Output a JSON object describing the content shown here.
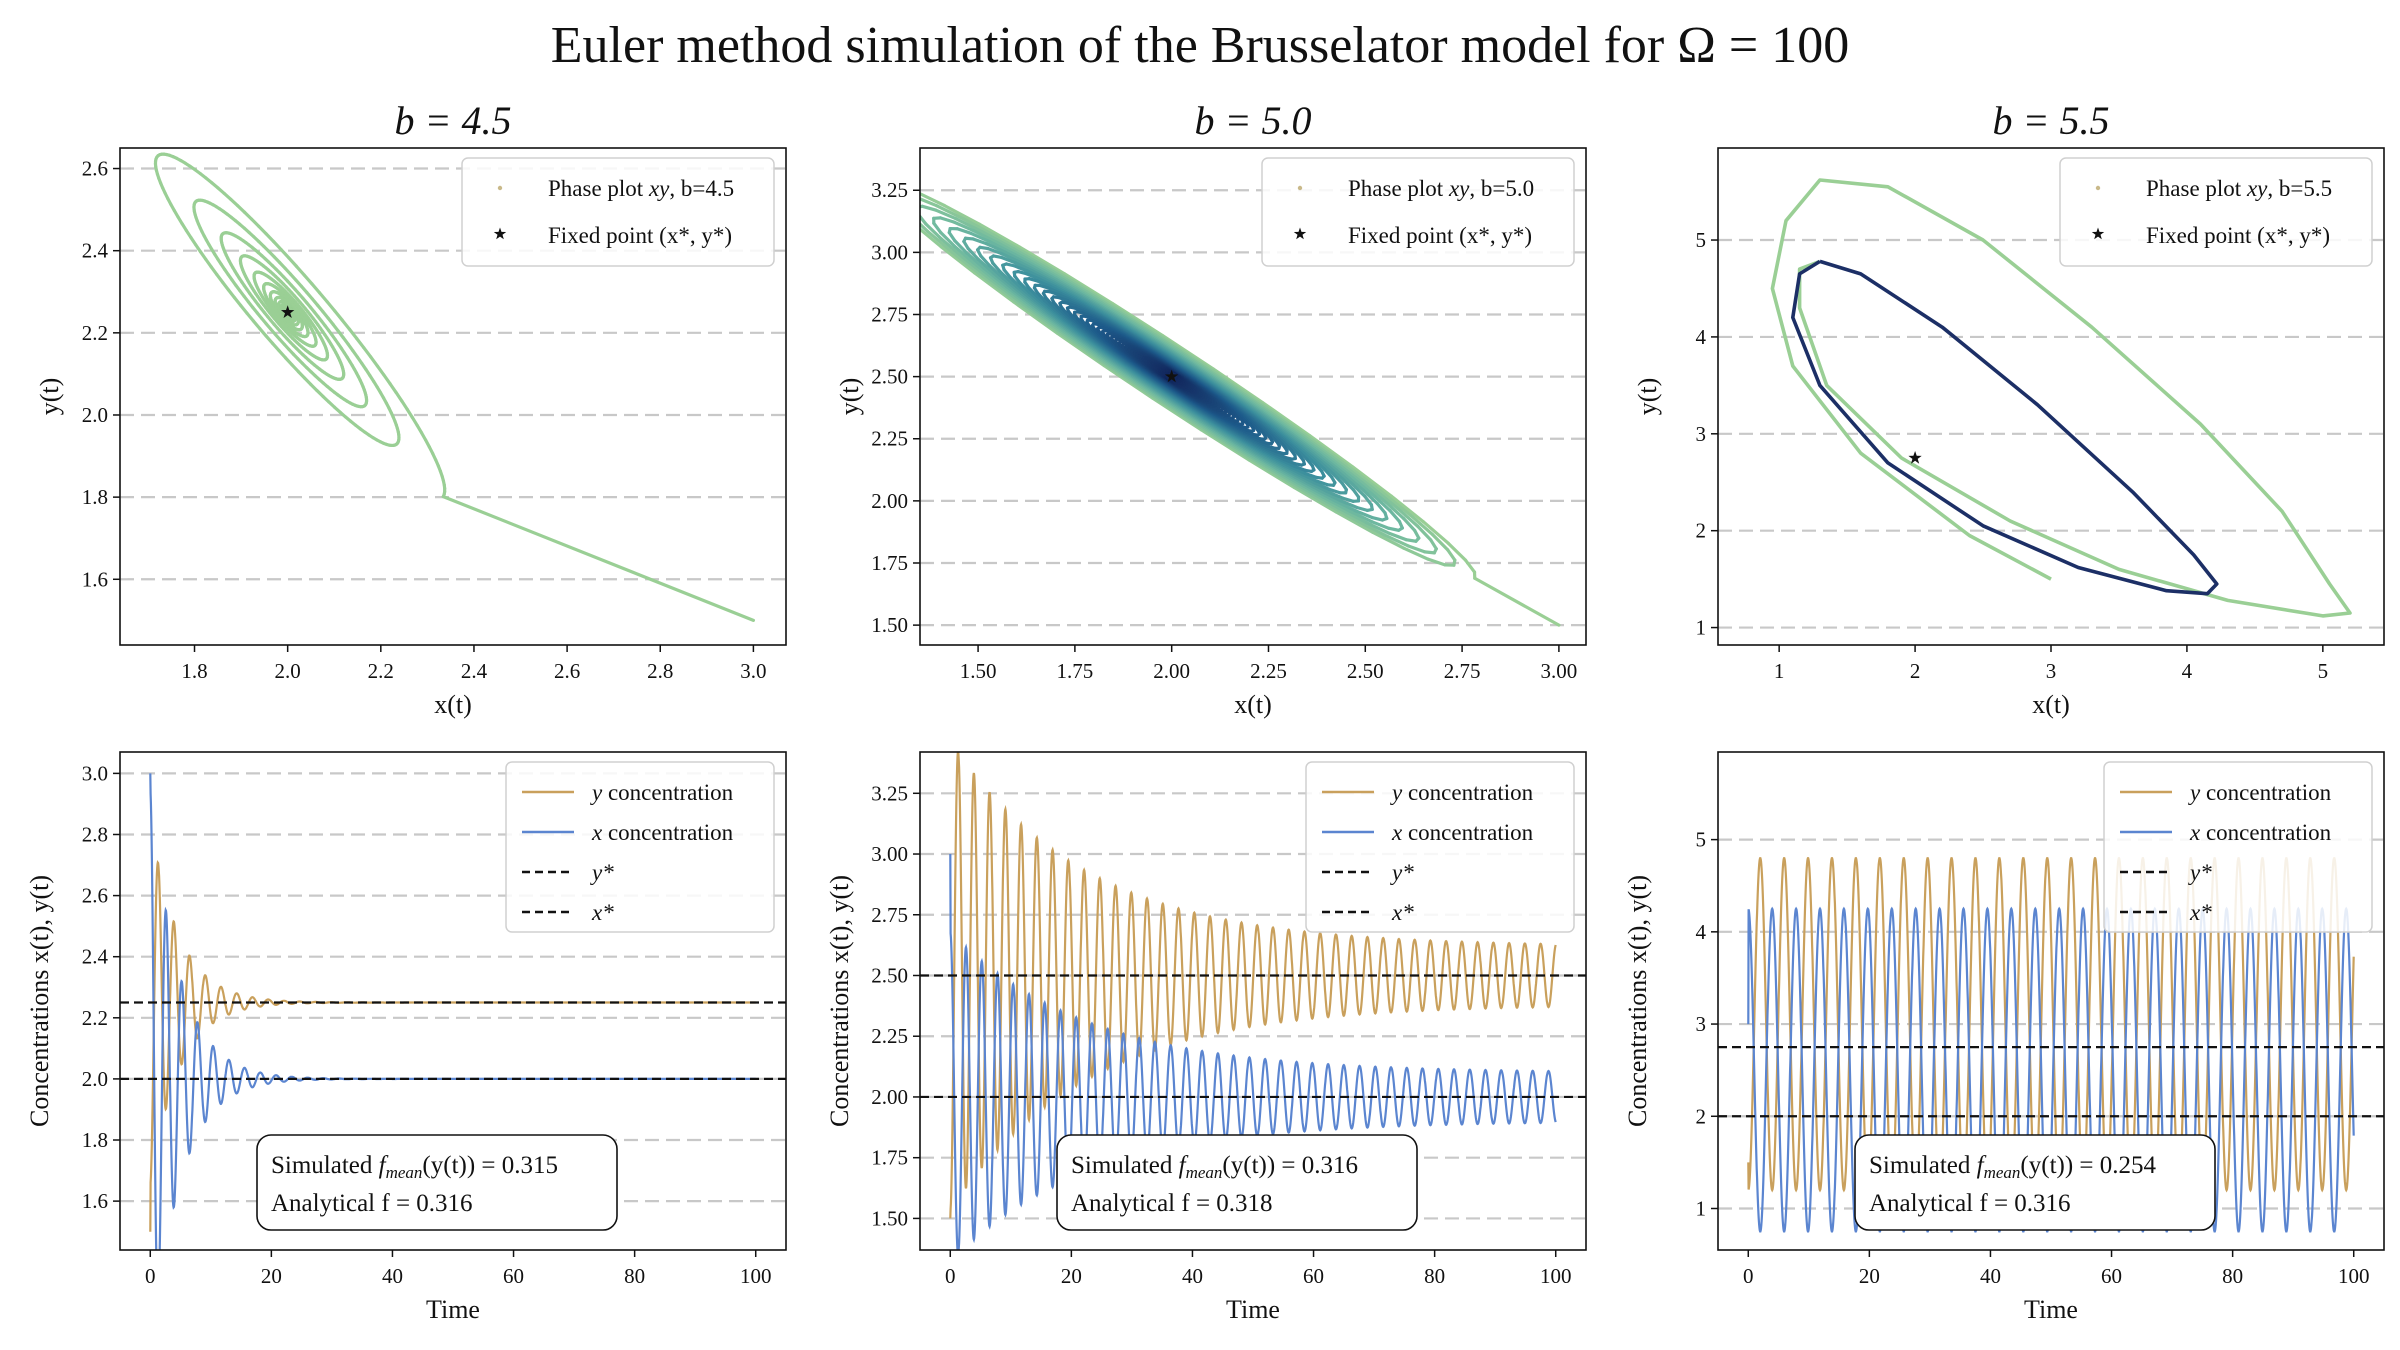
{
  "suptitle": "Euler method simulation of the Brusselator model for Ω = 100",
  "chart_data": [
    {
      "id": "p11",
      "type": "line",
      "title": "b = 4.5",
      "xlabel": "x(t)",
      "ylabel": "y(t)",
      "xlim": [
        1.64,
        3.07
      ],
      "ylim": [
        1.44,
        2.65
      ],
      "xticks": [
        "1.8",
        "2.0",
        "2.2",
        "2.4",
        "2.6",
        "2.8",
        "3.0"
      ],
      "yticks": [
        "1.6",
        "1.8",
        "2.0",
        "2.2",
        "2.4",
        "2.6"
      ],
      "grid": "horizontal dashed",
      "legend_position": "top-right",
      "legend": [
        "Phase plot xy, b=4.5",
        "Fixed point (x*, y*)"
      ],
      "series": [
        {
          "name": "Phase plot xy, b=4.5",
          "kind": "phase",
          "start": [
            3.0,
            1.5
          ],
          "center": [
            2.0,
            2.25
          ],
          "amp": [
            0.35,
            0.47
          ],
          "decay": 0.055,
          "loop_ratio": 0.58,
          "colors": [
            "#9acf95"
          ]
        }
      ],
      "fixed_point": [
        2.0,
        2.25
      ]
    },
    {
      "id": "p12",
      "type": "line",
      "title": "b = 5.0",
      "xlabel": "x(t)",
      "ylabel": "y(t)",
      "xlim": [
        1.35,
        3.07
      ],
      "ylim": [
        1.42,
        3.42
      ],
      "xticks": [
        "1.50",
        "1.75",
        "2.00",
        "2.25",
        "2.50",
        "2.75",
        "3.00"
      ],
      "yticks": [
        "1.50",
        "1.75",
        "2.00",
        "2.25",
        "2.50",
        "2.75",
        "3.00",
        "3.25"
      ],
      "grid": "horizontal dashed",
      "legend_position": "top-right",
      "legend": [
        "Phase plot xy, b=5.0",
        "Fixed point (x*, y*)"
      ],
      "series": [
        {
          "name": "Phase plot xy, b=5.0",
          "kind": "phase",
          "start": [
            3.0,
            1.5
          ],
          "center": [
            2.0,
            2.5
          ],
          "amp": [
            0.82,
            0.85
          ],
          "decay": 0.011,
          "loop_ratio": 0.8,
          "colors": [
            "#9acf95",
            "#6cb7a0",
            "#3c8f9d",
            "#1d5a8a",
            "#14285e"
          ]
        }
      ],
      "fixed_point": [
        2.0,
        2.5
      ]
    },
    {
      "id": "p13",
      "type": "line",
      "title": "b = 5.5",
      "xlabel": "x(t)",
      "ylabel": "y(t)",
      "xlim": [
        0.55,
        5.45
      ],
      "ylim": [
        0.82,
        5.95
      ],
      "xticks": [
        "1",
        "2",
        "3",
        "4",
        "5"
      ],
      "yticks": [
        "1",
        "2",
        "3",
        "4",
        "5"
      ],
      "grid": "horizontal dashed",
      "legend_position": "top-right",
      "legend": [
        "Phase plot xy, b=5.5",
        "Fixed point (x*, y*)"
      ],
      "series": [
        {
          "name": "Phase plot xy, b=5.5",
          "kind": "path",
          "color": "#9acf95",
          "points": [
            [
              3.0,
              1.5
            ],
            [
              2.4,
              1.95
            ],
            [
              1.6,
              2.8
            ],
            [
              1.1,
              3.7
            ],
            [
              0.95,
              4.5
            ],
            [
              1.05,
              5.2
            ],
            [
              1.3,
              5.62
            ],
            [
              1.8,
              5.55
            ],
            [
              2.5,
              5.0
            ],
            [
              3.3,
              4.1
            ],
            [
              4.1,
              3.1
            ],
            [
              4.7,
              2.2
            ],
            [
              5.05,
              1.45
            ],
            [
              5.2,
              1.15
            ],
            [
              5.0,
              1.12
            ],
            [
              4.3,
              1.28
            ],
            [
              3.5,
              1.6
            ],
            [
              2.7,
              2.1
            ],
            [
              1.9,
              2.75
            ],
            [
              1.35,
              3.5
            ],
            [
              1.15,
              4.3
            ],
            [
              1.15,
              4.7
            ],
            [
              1.3,
              4.78
            ]
          ]
        },
        {
          "name": "",
          "kind": "path",
          "color": "#1c2f66",
          "points": [
            [
              1.3,
              4.78
            ],
            [
              1.6,
              4.65
            ],
            [
              2.2,
              4.1
            ],
            [
              2.9,
              3.3
            ],
            [
              3.6,
              2.4
            ],
            [
              4.05,
              1.75
            ],
            [
              4.22,
              1.45
            ],
            [
              4.15,
              1.35
            ],
            [
              3.85,
              1.38
            ],
            [
              3.2,
              1.62
            ],
            [
              2.5,
              2.05
            ],
            [
              1.8,
              2.7
            ],
            [
              1.3,
              3.5
            ],
            [
              1.1,
              4.2
            ],
            [
              1.15,
              4.65
            ],
            [
              1.3,
              4.78
            ]
          ]
        }
      ],
      "fixed_point": [
        2.0,
        2.75
      ]
    },
    {
      "id": "p21",
      "type": "line",
      "title": "",
      "xlabel": "Time",
      "ylabel": "Concentrations x(t), y(t)",
      "xlim": [
        -5,
        105
      ],
      "ylim": [
        1.44,
        3.07
      ],
      "xticks": [
        "0",
        "20",
        "40",
        "60",
        "80",
        "100"
      ],
      "yticks": [
        "1.6",
        "1.8",
        "2.0",
        "2.2",
        "2.4",
        "2.6",
        "2.8",
        "3.0"
      ],
      "grid": "horizontal dashed",
      "legend_position": "top-right",
      "legend": [
        "y concentration",
        "x concentration",
        "y*",
        "x*"
      ],
      "series": [
        {
          "name": "y concentration",
          "kind": "osc",
          "color": "#c9a05c",
          "start": 1.5,
          "eq": 2.25,
          "amp": 0.6,
          "phase": 3.14159,
          "period": 2.6,
          "decay": 0.21,
          "final_amp": 0.0,
          "t_end": 100
        },
        {
          "name": "x concentration",
          "kind": "osc",
          "color": "#5b85d0",
          "start": 3.0,
          "eq": 2.0,
          "amp": 0.95,
          "phase": 0.0,
          "period": 2.6,
          "decay": 0.21,
          "final_amp": 0.0,
          "t_end": 100
        }
      ],
      "hlines": [
        {
          "label": "y*",
          "value": 2.25
        },
        {
          "label": "x*",
          "value": 2.0
        }
      ],
      "annotation": {
        "line1_prefix": "Simulated ",
        "line1_mean": "mean",
        "line1_suffix": "(y(t)) = 0.315",
        "line2": "Analytical f = 0.316"
      }
    },
    {
      "id": "p22",
      "type": "line",
      "title": "",
      "xlabel": "Time",
      "ylabel": "Concentrations x(t), y(t)",
      "xlim": [
        -5,
        105
      ],
      "ylim": [
        1.37,
        3.42
      ],
      "xticks": [
        "0",
        "20",
        "40",
        "60",
        "80",
        "100"
      ],
      "yticks": [
        "1.50",
        "1.75",
        "2.00",
        "2.25",
        "2.50",
        "2.75",
        "3.00",
        "3.25"
      ],
      "grid": "horizontal dashed",
      "legend_position": "top-right",
      "legend": [
        "y concentration",
        "x concentration",
        "y*",
        "x*"
      ],
      "series": [
        {
          "name": "y concentration",
          "kind": "osc",
          "color": "#c9a05c",
          "start": 1.5,
          "eq": 2.5,
          "amp": 0.85,
          "phase": 3.14159,
          "period": 2.6,
          "decay": 0.045,
          "final_amp": 0.12,
          "t_end": 100
        },
        {
          "name": "x concentration",
          "kind": "osc",
          "color": "#5b85d0",
          "start": 3.0,
          "eq": 2.0,
          "amp": 0.58,
          "phase": 0.0,
          "period": 2.6,
          "decay": 0.045,
          "final_amp": 0.1,
          "t_end": 100
        }
      ],
      "hlines": [
        {
          "label": "y*",
          "value": 2.5
        },
        {
          "label": "x*",
          "value": 2.0
        }
      ],
      "annotation": {
        "line1_prefix": "Simulated ",
        "line1_mean": "mean",
        "line1_suffix": "(y(t)) = 0.316",
        "line2": "Analytical f = 0.318"
      }
    },
    {
      "id": "p23",
      "type": "line",
      "title": "",
      "xlabel": "Time",
      "ylabel": "Concentrations x(t), y(t)",
      "xlim": [
        -5,
        105
      ],
      "ylim": [
        0.55,
        5.95
      ],
      "xticks": [
        "0",
        "20",
        "40",
        "60",
        "80",
        "100"
      ],
      "yticks": [
        "1",
        "2",
        "3",
        "4",
        "5"
      ],
      "grid": "horizontal dashed",
      "legend_position": "top-right",
      "legend": [
        "y concentration",
        "x concentration",
        "y*",
        "x*"
      ],
      "series": [
        {
          "name": "y concentration",
          "kind": "osc",
          "color": "#c9a05c",
          "start": 1.5,
          "eq": 3.0,
          "amp": 1.8,
          "phase": 3.14159,
          "period": 3.95,
          "decay": 0.0,
          "final_amp": 0.0,
          "t_end": 100
        },
        {
          "name": "x concentration",
          "kind": "osc",
          "color": "#5b85d0",
          "start": 3.0,
          "eq": 2.5,
          "amp": 1.75,
          "phase": 0.0,
          "period": 3.95,
          "decay": 0.0,
          "final_amp": 0.0,
          "t_end": 100
        }
      ],
      "hlines": [
        {
          "label": "y*",
          "value": 2.75
        },
        {
          "label": "x*",
          "value": 2.0
        }
      ],
      "annotation": {
        "line1_prefix": "Simulated ",
        "line1_mean": "mean",
        "line1_suffix": "(y(t)) = 0.254",
        "line2": "Analytical f = 0.316"
      }
    }
  ]
}
